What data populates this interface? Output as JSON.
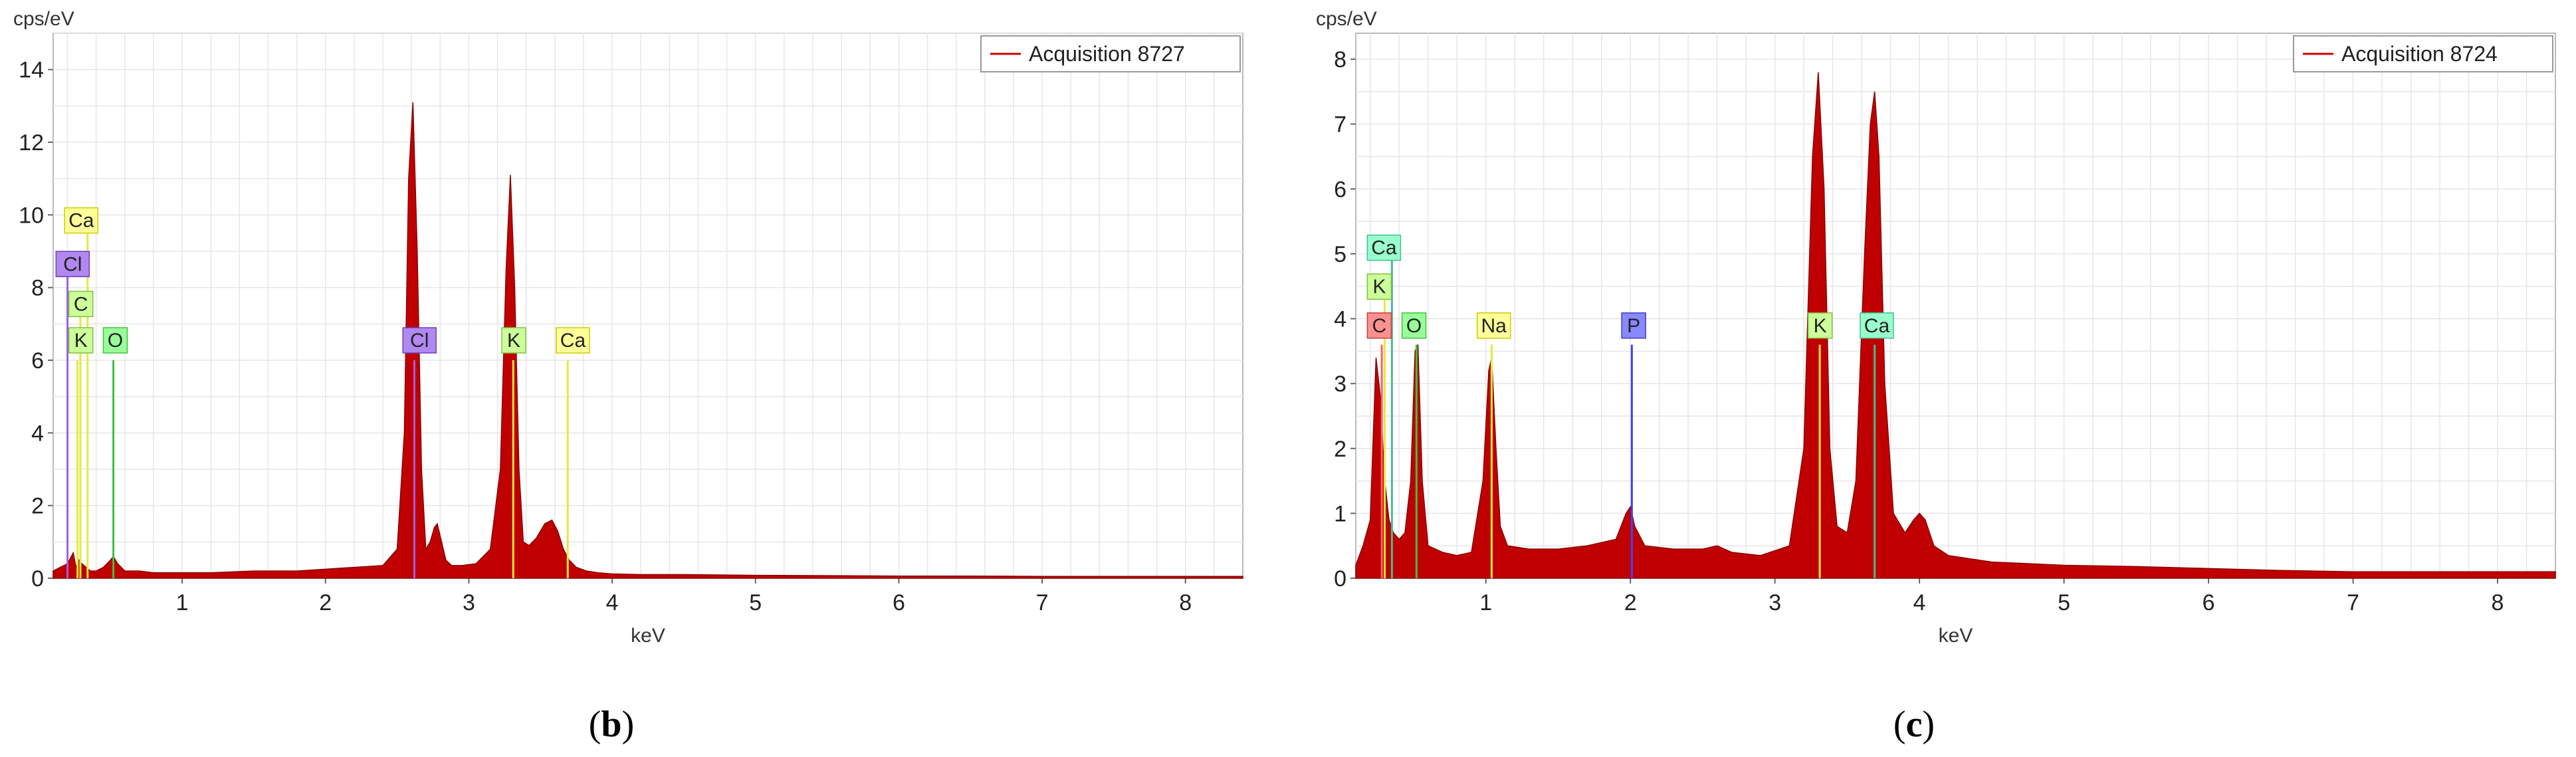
{
  "chart_data": [
    {
      "type": "area",
      "panel_label": "b",
      "ylabel": "cps/eV",
      "xlabel": "keV",
      "ylim": [
        0,
        15
      ],
      "xlim": [
        0.1,
        8.4
      ],
      "yticks": [
        0,
        2,
        4,
        6,
        8,
        10,
        12,
        14
      ],
      "xticks": [
        1,
        2,
        3,
        4,
        5,
        6,
        7,
        8
      ],
      "grid": true,
      "legend": {
        "label": "Acquisition 8727",
        "position": "top-right"
      },
      "series": [
        {
          "color": "#c00000",
          "x": [
            0.1,
            0.15,
            0.2,
            0.24,
            0.26,
            0.28,
            0.3,
            0.33,
            0.36,
            0.4,
            0.45,
            0.5,
            0.52,
            0.55,
            0.6,
            0.7,
            0.8,
            1.0,
            1.2,
            1.5,
            1.8,
            2.0,
            2.2,
            2.4,
            2.5,
            2.55,
            2.58,
            2.61,
            2.64,
            2.67,
            2.7,
            2.73,
            2.76,
            2.78,
            2.81,
            2.84,
            2.88,
            2.95,
            3.05,
            3.15,
            3.22,
            3.26,
            3.29,
            3.32,
            3.35,
            3.38,
            3.42,
            3.47,
            3.53,
            3.58,
            3.62,
            3.66,
            3.7,
            3.75,
            3.82,
            3.9,
            4.0,
            4.2,
            4.5,
            5.0,
            5.5,
            6.0,
            6.5,
            7.0,
            7.5,
            8.0,
            8.4
          ],
          "y": [
            0.2,
            0.3,
            0.4,
            0.7,
            0.3,
            0.5,
            0.4,
            0.3,
            0.2,
            0.2,
            0.3,
            0.5,
            0.6,
            0.4,
            0.2,
            0.2,
            0.15,
            0.15,
            0.15,
            0.2,
            0.2,
            0.25,
            0.3,
            0.35,
            0.8,
            4.0,
            11.0,
            13.1,
            9.0,
            3.0,
            0.8,
            1.0,
            1.4,
            1.5,
            1.0,
            0.5,
            0.35,
            0.35,
            0.4,
            0.8,
            3.0,
            8.5,
            11.1,
            8.0,
            3.0,
            1.0,
            0.9,
            1.1,
            1.5,
            1.6,
            1.3,
            0.8,
            0.5,
            0.3,
            0.2,
            0.15,
            0.12,
            0.1,
            0.1,
            0.08,
            0.07,
            0.06,
            0.06,
            0.05,
            0.05,
            0.05,
            0.05
          ]
        }
      ],
      "element_lines": [
        {
          "element": "Cl",
          "x": 0.2,
          "top": 8.3,
          "color": "#a060e0"
        },
        {
          "element": "K",
          "x": 0.27,
          "top": 6.0,
          "color": "#e8e840"
        },
        {
          "element": "C",
          "x": 0.29,
          "top": 7.2,
          "color": "#e8e840"
        },
        {
          "element": "Ca",
          "x": 0.34,
          "top": 9.5,
          "color": "#e8e840"
        },
        {
          "element": "O",
          "x": 0.52,
          "top": 6.0,
          "color": "#40c040"
        },
        {
          "element": "Cl",
          "x": 2.62,
          "top": 6.0,
          "color": "#a060e0"
        },
        {
          "element": "K",
          "x": 3.31,
          "top": 6.0,
          "color": "#e8e840"
        },
        {
          "element": "Ca",
          "x": 3.69,
          "top": 6.0,
          "color": "#e8e840"
        }
      ],
      "element_labels": [
        {
          "text": "Ca",
          "x": 0.18,
          "y": 9.5,
          "fill": "#ffff99",
          "stroke": "#cccc00"
        },
        {
          "text": "Cl",
          "x": 0.12,
          "y": 8.3,
          "fill": "#b088f0",
          "stroke": "#7040c0"
        },
        {
          "text": "C",
          "x": 0.21,
          "y": 7.2,
          "fill": "#ccff99",
          "stroke": "#80c040"
        },
        {
          "text": "K",
          "x": 0.21,
          "y": 6.2,
          "fill": "#ccff99",
          "stroke": "#80c040"
        },
        {
          "text": "O",
          "x": 0.45,
          "y": 6.2,
          "fill": "#99ff99",
          "stroke": "#40c040"
        },
        {
          "text": "Cl",
          "x": 2.54,
          "y": 6.2,
          "fill": "#b088f0",
          "stroke": "#7040c0"
        },
        {
          "text": "K",
          "x": 3.23,
          "y": 6.2,
          "fill": "#ccff99",
          "stroke": "#80c040"
        },
        {
          "text": "Ca",
          "x": 3.61,
          "y": 6.2,
          "fill": "#ffff99",
          "stroke": "#cccc00"
        }
      ]
    },
    {
      "type": "area",
      "panel_label": "c",
      "ylabel": "cps/eV",
      "xlabel": "keV",
      "ylim": [
        0,
        8.4
      ],
      "xlim": [
        0.1,
        8.4
      ],
      "yticks": [
        0,
        1,
        2,
        3,
        4,
        5,
        6,
        7,
        8
      ],
      "xticks": [
        1,
        2,
        3,
        4,
        5,
        6,
        7,
        8
      ],
      "grid": true,
      "legend": {
        "label": "Acquisition 8724",
        "position": "top-right"
      },
      "series": [
        {
          "color": "#c00000",
          "x": [
            0.1,
            0.15,
            0.2,
            0.24,
            0.27,
            0.3,
            0.33,
            0.36,
            0.4,
            0.44,
            0.48,
            0.51,
            0.53,
            0.56,
            0.6,
            0.7,
            0.8,
            0.9,
            0.98,
            1.02,
            1.04,
            1.07,
            1.1,
            1.15,
            1.3,
            1.5,
            1.7,
            1.8,
            1.9,
            1.97,
            2.0,
            2.03,
            2.1,
            2.3,
            2.5,
            2.6,
            2.7,
            2.9,
            3.1,
            3.2,
            3.26,
            3.3,
            3.34,
            3.38,
            3.43,
            3.5,
            3.56,
            3.62,
            3.66,
            3.69,
            3.72,
            3.76,
            3.82,
            3.9,
            3.96,
            4.0,
            4.04,
            4.1,
            4.2,
            4.5,
            5.0,
            5.5,
            6.0,
            6.5,
            7.0,
            7.5,
            8.0,
            8.4
          ],
          "y": [
            0.2,
            0.5,
            0.9,
            3.4,
            2.8,
            1.5,
            0.9,
            0.7,
            0.6,
            0.7,
            1.5,
            3.5,
            3.6,
            1.5,
            0.5,
            0.4,
            0.35,
            0.4,
            1.5,
            3.2,
            3.4,
            2.0,
            0.8,
            0.5,
            0.45,
            0.45,
            0.5,
            0.55,
            0.6,
            1.0,
            1.1,
            0.8,
            0.5,
            0.45,
            0.45,
            0.5,
            0.4,
            0.35,
            0.5,
            2.0,
            6.5,
            7.8,
            6.0,
            2.0,
            0.8,
            0.7,
            1.5,
            5.0,
            7.0,
            7.5,
            6.5,
            3.0,
            1.0,
            0.7,
            0.9,
            1.0,
            0.9,
            0.5,
            0.35,
            0.25,
            0.2,
            0.18,
            0.15,
            0.12,
            0.1,
            0.1,
            0.1,
            0.1
          ]
        }
      ],
      "element_lines": [
        {
          "element": "C",
          "x": 0.28,
          "top": 3.6,
          "color": "#ff6060"
        },
        {
          "element": "K",
          "x": 0.3,
          "top": 4.3,
          "color": "#e8e840"
        },
        {
          "element": "Ca",
          "x": 0.35,
          "top": 4.9,
          "color": "#40c090"
        },
        {
          "element": "O",
          "x": 0.52,
          "top": 3.6,
          "color": "#40c040"
        },
        {
          "element": "Na",
          "x": 1.04,
          "top": 3.6,
          "color": "#e8e840"
        },
        {
          "element": "P",
          "x": 2.01,
          "top": 3.6,
          "color": "#4040ff"
        },
        {
          "element": "K",
          "x": 3.31,
          "top": 3.6,
          "color": "#e8e840"
        },
        {
          "element": "Ca",
          "x": 3.69,
          "top": 3.6,
          "color": "#40c090"
        }
      ],
      "element_labels": [
        {
          "text": "Ca",
          "x": 0.18,
          "y": 4.9,
          "fill": "#99ffcc",
          "stroke": "#40c090"
        },
        {
          "text": "K",
          "x": 0.18,
          "y": 4.3,
          "fill": "#ccff99",
          "stroke": "#80c040"
        },
        {
          "text": "C",
          "x": 0.18,
          "y": 3.7,
          "fill": "#ff9090",
          "stroke": "#c04040"
        },
        {
          "text": "O",
          "x": 0.42,
          "y": 3.7,
          "fill": "#99ff99",
          "stroke": "#40c040"
        },
        {
          "text": "Na",
          "x": 0.94,
          "y": 3.7,
          "fill": "#ffff99",
          "stroke": "#cccc00"
        },
        {
          "text": "P",
          "x": 1.94,
          "y": 3.7,
          "fill": "#8888ff",
          "stroke": "#4040c0"
        },
        {
          "text": "K",
          "x": 3.23,
          "y": 3.7,
          "fill": "#ccff99",
          "stroke": "#80c040"
        },
        {
          "text": "Ca",
          "x": 3.59,
          "y": 3.7,
          "fill": "#99ffcc",
          "stroke": "#40c090"
        }
      ]
    }
  ]
}
